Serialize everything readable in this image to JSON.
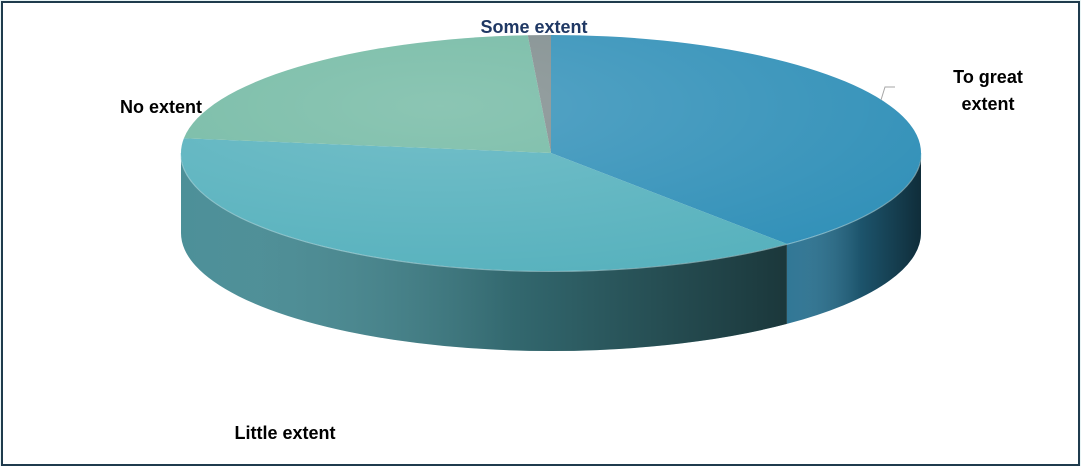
{
  "chart_data": {
    "type": "pie",
    "title": "",
    "legend": "none",
    "slices": [
      {
        "label": "To great extent",
        "label_lines": [
          "To great",
          "extent"
        ],
        "value": 39,
        "color": "#3190b8"
      },
      {
        "label": "Little extent",
        "label_lines": [
          "Little extent"
        ],
        "value": 38,
        "color": "#56b1bd"
      },
      {
        "label": "No extent",
        "label_lines": [
          "No extent"
        ],
        "value": 22,
        "color": "#72b9a3"
      },
      {
        "label": "Some extent",
        "label_lines": [
          "Some extent"
        ],
        "value": 1,
        "color": "#7f8c8d"
      }
    ],
    "label_colors": {
      "default": "#000000",
      "Some extent": "#1f3864"
    }
  }
}
